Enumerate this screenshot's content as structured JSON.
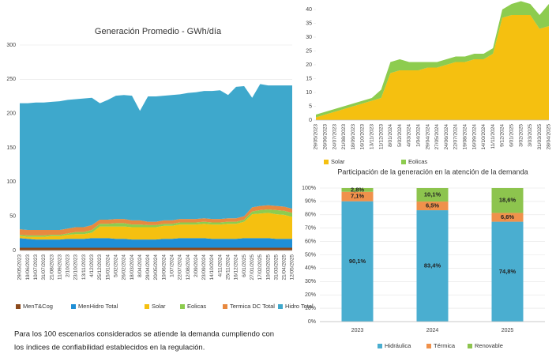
{
  "chart_data": [
    {
      "type": "area",
      "title": "Generación Promedio - GWh/día",
      "categories": [
        "29/05/2023",
        "19/06/2023",
        "10/07/2023",
        "31/07/2023",
        "21/08/2023",
        "11/09/2023",
        "2/10/2023",
        "23/10/2023",
        "13/11/2023",
        "4/12/2023",
        "25/12/2023",
        "15/01/2024",
        "5/02/2024",
        "26/02/2024",
        "18/03/2024",
        "8/04/2024",
        "29/04/2024",
        "20/05/2024",
        "10/06/2024",
        "1/07/2024",
        "22/07/2024",
        "12/08/2024",
        "2/09/2024",
        "23/09/2024",
        "14/10/2024",
        "4/11/2024",
        "25/11/2024",
        "16/12/2024",
        "6/01/2025",
        "27/01/2025",
        "17/02/2025",
        "10/03/2025",
        "31/03/2025",
        "21/04/2025",
        "12/05/2025"
      ],
      "series": [
        {
          "name": "MenT&Cog",
          "color": "#8b4a1c",
          "values": [
            4,
            4,
            4,
            4,
            4,
            4,
            4,
            4,
            4,
            4,
            4,
            4,
            4,
            4,
            4,
            4,
            4,
            4,
            4,
            4,
            4,
            4,
            4,
            4,
            4,
            4,
            4,
            4,
            4,
            4,
            4,
            4,
            4,
            4,
            4
          ]
        },
        {
          "name": "MenHidro Total",
          "color": "#1f8fd6",
          "values": [
            14,
            13,
            12,
            12,
            12,
            12,
            13,
            13,
            13,
            14,
            14,
            14,
            13,
            13,
            12,
            12,
            12,
            12,
            13,
            13,
            14,
            14,
            14,
            14,
            13,
            13,
            13,
            13,
            14,
            14,
            14,
            14,
            13,
            13,
            13
          ]
        },
        {
          "name": "Solar",
          "color": "#f5c010",
          "values": [
            3,
            3,
            4,
            4,
            5,
            5,
            6,
            7,
            7,
            8,
            17,
            17,
            18,
            18,
            18,
            18,
            18,
            18,
            19,
            19,
            20,
            20,
            20,
            21,
            21,
            21,
            22,
            22,
            24,
            35,
            36,
            37,
            36,
            35,
            32
          ]
        },
        {
          "name": "Eolicas",
          "color": "#8dcc4f",
          "values": [
            2,
            2,
            2,
            2,
            2,
            2,
            2,
            3,
            3,
            4,
            4,
            4,
            5,
            5,
            4,
            4,
            3,
            3,
            3,
            3,
            3,
            3,
            3,
            3,
            3,
            3,
            3,
            3,
            3,
            4,
            5,
            5,
            6,
            6,
            6
          ]
        },
        {
          "name": "Termica DC Total",
          "color": "#e8893f",
          "values": [
            8,
            8,
            8,
            8,
            7,
            7,
            7,
            7,
            7,
            7,
            6,
            6,
            6,
            6,
            6,
            6,
            5,
            5,
            5,
            5,
            5,
            5,
            5,
            5,
            5,
            5,
            5,
            5,
            5,
            6,
            6,
            6,
            6,
            6,
            6
          ]
        },
        {
          "name": "Hidro Total",
          "color": "#3ea8cc",
          "values": [
            184,
            185,
            186,
            186,
            187,
            188,
            188,
            187,
            188,
            186,
            170,
            175,
            180,
            181,
            182,
            160,
            183,
            183,
            182,
            183,
            182,
            184,
            185,
            186,
            187,
            188,
            180,
            192,
            190,
            160,
            178,
            175,
            176,
            177,
            180
          ]
        }
      ],
      "ylim": [
        0,
        300
      ],
      "yticks": [
        0,
        50,
        100,
        150,
        200,
        250,
        300
      ],
      "note": [
        "Para los 100 escenarios considerados se atiende la demanda  cumpliendo con",
        "los índices de confiabilidad establecidos en la  regulación."
      ]
    },
    {
      "type": "area",
      "categories": [
        "29/05/2023",
        "26/06/2023",
        "24/07/2023",
        "21/08/2023",
        "18/09/2023",
        "16/10/2023",
        "13/11/2023",
        "11/12/2023",
        "8/01/2024",
        "5/02/2024",
        "4/03/2024",
        "1/04/2024",
        "29/04/2024",
        "27/05/2024",
        "24/06/2024",
        "22/07/2024",
        "19/08/2024",
        "16/09/2024",
        "14/10/2024",
        "11/11/2024",
        "9/12/2024",
        "6/01/2025",
        "3/02/2025",
        "3/03/2025",
        "31/03/2025",
        "28/04/2025"
      ],
      "series": [
        {
          "name": "Solar",
          "color": "#f5c010",
          "values": [
            1,
            2,
            3,
            4,
            5,
            6,
            7,
            8,
            17,
            18,
            18,
            18,
            19,
            19,
            20,
            21,
            21,
            22,
            22,
            24,
            37,
            38,
            38,
            38,
            33,
            34
          ]
        },
        {
          "name": "Eolicas",
          "color": "#8dcc4f",
          "values": [
            1,
            1,
            1,
            1,
            1,
            1,
            1,
            3,
            4,
            4,
            3,
            3,
            2,
            2,
            2,
            2,
            2,
            2,
            2,
            2,
            3,
            4,
            5,
            4,
            5,
            8
          ]
        }
      ],
      "ylim": [
        0,
        43
      ],
      "yticks": [
        0,
        5,
        10,
        15,
        20,
        25,
        30,
        35,
        40
      ]
    },
    {
      "type": "bar",
      "title": "Participación de la generación en la atención de la demanda",
      "categories": [
        "2023",
        "2024",
        "2025"
      ],
      "series": [
        {
          "name": "Hidráulica",
          "color": "#4aaed0",
          "values": [
            90.1,
            83.4,
            74.8
          ],
          "value_labels": [
            "90,1%",
            "83,4%",
            "74,8%"
          ]
        },
        {
          "name": "Térmica",
          "color": "#f0914b",
          "values": [
            7.1,
            6.5,
            6.6
          ],
          "value_labels": [
            "7,1%",
            "6,5%",
            "6,6%"
          ]
        },
        {
          "name": "Renovable",
          "color": "#8dc44e",
          "values": [
            2.8,
            10.1,
            18.6
          ],
          "value_labels": [
            "2,8%",
            "10,1%",
            "18,6%"
          ]
        }
      ],
      "ylim": [
        0,
        100
      ],
      "yticks": [
        {
          "value": 0,
          "label": "0%"
        },
        {
          "value": 10,
          "label": "10%"
        },
        {
          "value": 20,
          "label": "20%"
        },
        {
          "value": 30,
          "label": "30%"
        },
        {
          "value": 40,
          "label": "40%"
        },
        {
          "value": 50,
          "label": "50%"
        },
        {
          "value": 60,
          "label": "60%"
        },
        {
          "value": 70,
          "label": "70%"
        },
        {
          "value": 80,
          "label": "80%"
        },
        {
          "value": 90,
          "label": "90%"
        },
        {
          "value": 100,
          "label": "100%"
        }
      ]
    }
  ]
}
